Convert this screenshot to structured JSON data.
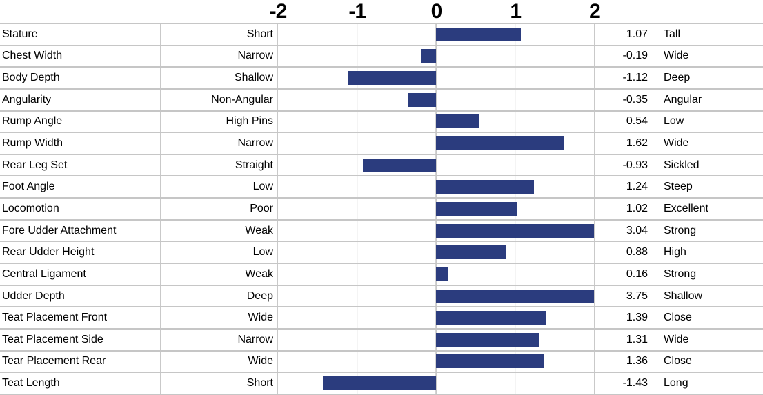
{
  "chart_data": {
    "type": "bar",
    "orientation": "horizontal",
    "title": "",
    "xlabel": "",
    "ylabel": "",
    "xlim": [
      -2,
      2
    ],
    "axis_ticks": [
      "-2",
      "-1",
      "0",
      "1",
      "2"
    ],
    "axis_tick_values": [
      -2,
      -1,
      0,
      1,
      2
    ],
    "grid": true,
    "bar_color": "#2b3c7e",
    "gridline_color": "#c9c9c9",
    "bars_clipped_to_axis_range": true,
    "columns": [
      "trait",
      "low_end_label",
      "bar",
      "value",
      "high_end_label"
    ],
    "rows": [
      {
        "trait": "Stature",
        "low": "Short",
        "value": 1.07,
        "value_label": "1.07",
        "high": "Tall"
      },
      {
        "trait": "Chest Width",
        "low": "Narrow",
        "value": -0.19,
        "value_label": "-0.19",
        "high": "Wide"
      },
      {
        "trait": "Body Depth",
        "low": "Shallow",
        "value": -1.12,
        "value_label": "-1.12",
        "high": "Deep"
      },
      {
        "trait": "Angularity",
        "low": "Non-Angular",
        "value": -0.35,
        "value_label": "-0.35",
        "high": "Angular"
      },
      {
        "trait": "Rump Angle",
        "low": "High Pins",
        "value": 0.54,
        "value_label": "0.54",
        "high": "Low"
      },
      {
        "trait": "Rump Width",
        "low": "Narrow",
        "value": 1.62,
        "value_label": "1.62",
        "high": "Wide"
      },
      {
        "trait": "Rear Leg Set",
        "low": "Straight",
        "value": -0.93,
        "value_label": "-0.93",
        "high": "Sickled"
      },
      {
        "trait": "Foot Angle",
        "low": "Low",
        "value": 1.24,
        "value_label": "1.24",
        "high": "Steep"
      },
      {
        "trait": "Locomotion",
        "low": "Poor",
        "value": 1.02,
        "value_label": "1.02",
        "high": "Excellent"
      },
      {
        "trait": "Fore Udder Attachment",
        "low": "Weak",
        "value": 3.04,
        "value_label": "3.04",
        "high": "Strong"
      },
      {
        "trait": "Rear Udder Height",
        "low": "Low",
        "value": 0.88,
        "value_label": "0.88",
        "high": "High"
      },
      {
        "trait": "Central Ligament",
        "low": "Weak",
        "value": 0.16,
        "value_label": "0.16",
        "high": "Strong"
      },
      {
        "trait": "Udder Depth",
        "low": "Deep",
        "value": 3.75,
        "value_label": "3.75",
        "high": "Shallow"
      },
      {
        "trait": "Teat Placement Front",
        "low": "Wide",
        "value": 1.39,
        "value_label": "1.39",
        "high": "Close"
      },
      {
        "trait": "Teat Placement Side",
        "low": "Narrow",
        "value": 1.31,
        "value_label": "1.31",
        "high": "Wide"
      },
      {
        "trait": "Tear Placement Rear",
        "low": "Wide",
        "value": 1.36,
        "value_label": "1.36",
        "high": "Close"
      },
      {
        "trait": "Teat Length",
        "low": "Short",
        "value": -1.43,
        "value_label": "-1.43",
        "high": "Long"
      }
    ]
  }
}
